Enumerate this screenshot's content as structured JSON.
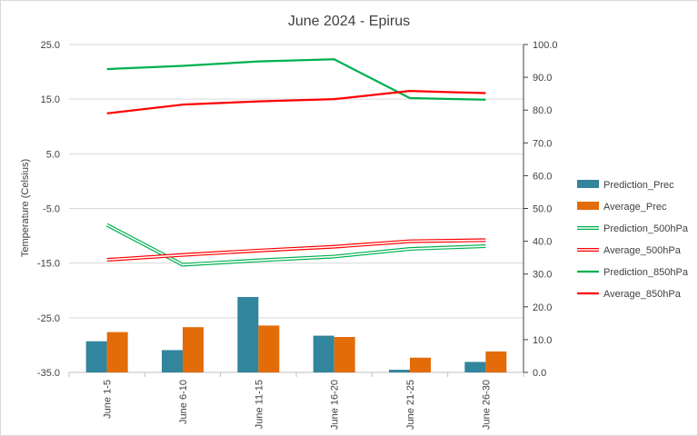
{
  "chart_data": {
    "type": "bar+line",
    "title": "June 2024 - Epirus",
    "categories": [
      "June 1-5",
      "June 6-10",
      "June 11-15",
      "June 16-20",
      "June 21-25",
      "June 26-30"
    ],
    "y_left": {
      "label": "Temperature (Celsius)",
      "min": -35,
      "max": 25,
      "ticks": [
        "25.0",
        "15.0",
        "5.0",
        "-5.0",
        "-15.0",
        "-25.0",
        "-35.0"
      ]
    },
    "y_right": {
      "min": 0,
      "max": 100,
      "ticks": [
        "100.0",
        "90.0",
        "80.0",
        "70.0",
        "60.0",
        "50.0",
        "40.0",
        "30.0",
        "20.0",
        "10.0",
        "0.0"
      ]
    },
    "series": [
      {
        "name": "Prediction_Prec",
        "kind": "bar",
        "axis": "right",
        "color": "#31859C",
        "values": [
          9.5,
          6.8,
          23.0,
          11.2,
          0.8,
          3.2
        ]
      },
      {
        "name": "Average_Prec",
        "kind": "bar",
        "axis": "right",
        "color": "#E36C09",
        "values": [
          12.3,
          13.8,
          14.3,
          10.8,
          4.5,
          6.4
        ]
      },
      {
        "name": "Prediction_500hPa",
        "kind": "line",
        "style": "double",
        "axis": "left",
        "color": "#00B050",
        "values": [
          -8.0,
          -15.3,
          -14.5,
          -13.8,
          -12.4,
          -11.9
        ]
      },
      {
        "name": "Average_500hPa",
        "kind": "line",
        "style": "double",
        "axis": "left",
        "color": "#FF0000",
        "values": [
          -14.4,
          -13.5,
          -12.7,
          -12.0,
          -11.0,
          -10.8
        ]
      },
      {
        "name": "Prediction_850hPa",
        "kind": "line",
        "style": "solid",
        "axis": "left",
        "color": "#00B050",
        "values": [
          20.5,
          21.1,
          21.9,
          22.3,
          15.2,
          14.9
        ]
      },
      {
        "name": "Average_850hPa",
        "kind": "line",
        "style": "solid",
        "axis": "left",
        "color": "#FF0000",
        "values": [
          12.4,
          14.0,
          14.6,
          15.0,
          16.5,
          16.1
        ]
      }
    ],
    "legend_position": "right"
  }
}
